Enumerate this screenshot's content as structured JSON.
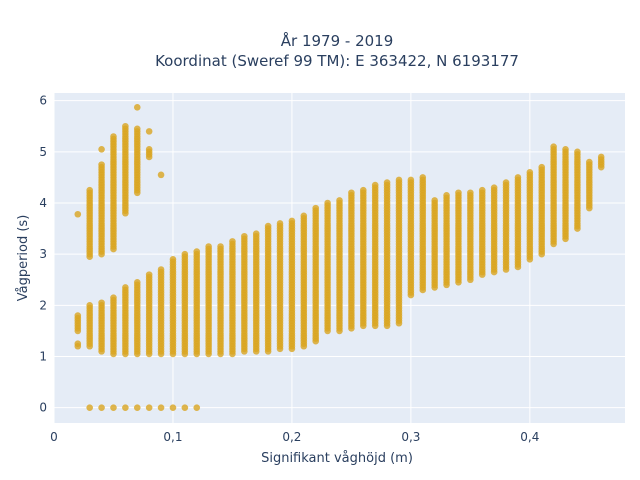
{
  "chart_data": {
    "type": "scatter",
    "title_line1": "År 1979 - 2019",
    "title_line2": "Koordinat (Sweref 99 TM): E 363422, N 6193177",
    "xlabel": "Signifikant våghöjd (m)",
    "ylabel": "Vågperiod (s)",
    "xlim": [
      0,
      0.48
    ],
    "ylim": [
      -0.3,
      6.15
    ],
    "x_ticks": [
      0,
      0.1,
      0.2,
      0.3,
      0.4
    ],
    "x_tick_labels": [
      "0",
      "0,1",
      "0,2",
      "0,3",
      "0,4"
    ],
    "y_ticks": [
      0,
      1,
      2,
      3,
      4,
      5,
      6
    ],
    "y_tick_labels": [
      "0",
      "1",
      "2",
      "3",
      "4",
      "5",
      "6"
    ],
    "grid": true,
    "legend": "none",
    "colors": {
      "marker": "#daa520",
      "plot_bg": "#e5ecf6",
      "grid": "#ffffff",
      "text": "#2a3f5f"
    },
    "marker_opacity": 0.8,
    "columns": [
      {
        "x": 0.02,
        "ranges": [
          [
            1.2,
            1.25
          ],
          [
            1.5,
            1.8
          ],
          [
            3.78,
            3.78
          ]
        ]
      },
      {
        "x": 0.03,
        "ranges": [
          [
            0,
            0
          ],
          [
            1.2,
            2.0
          ],
          [
            2.95,
            4.25
          ]
        ]
      },
      {
        "x": 0.04,
        "ranges": [
          [
            0,
            0
          ],
          [
            1.1,
            2.05
          ],
          [
            3.0,
            4.75
          ],
          [
            5.05,
            5.05
          ]
        ]
      },
      {
        "x": 0.05,
        "ranges": [
          [
            0,
            0
          ],
          [
            1.05,
            2.15
          ],
          [
            3.1,
            5.3
          ]
        ]
      },
      {
        "x": 0.06,
        "ranges": [
          [
            0,
            0
          ],
          [
            1.05,
            2.35
          ],
          [
            3.8,
            5.5
          ]
        ]
      },
      {
        "x": 0.07,
        "ranges": [
          [
            0,
            0
          ],
          [
            1.05,
            2.45
          ],
          [
            4.2,
            5.45
          ],
          [
            5.87,
            5.87
          ]
        ]
      },
      {
        "x": 0.08,
        "ranges": [
          [
            0,
            0
          ],
          [
            1.05,
            2.6
          ],
          [
            4.9,
            5.05
          ],
          [
            5.4,
            5.4
          ]
        ]
      },
      {
        "x": 0.09,
        "ranges": [
          [
            0,
            0
          ],
          [
            1.05,
            2.7
          ],
          [
            4.55,
            4.55
          ]
        ]
      },
      {
        "x": 0.1,
        "ranges": [
          [
            0,
            0
          ],
          [
            1.05,
            2.9
          ]
        ]
      },
      {
        "x": 0.11,
        "ranges": [
          [
            0,
            0
          ],
          [
            1.05,
            3.0
          ]
        ]
      },
      {
        "x": 0.12,
        "ranges": [
          [
            0,
            0
          ],
          [
            1.05,
            3.05
          ]
        ]
      },
      {
        "x": 0.13,
        "ranges": [
          [
            1.05,
            3.15
          ]
        ]
      },
      {
        "x": 0.14,
        "ranges": [
          [
            1.05,
            3.15
          ]
        ]
      },
      {
        "x": 0.15,
        "ranges": [
          [
            1.05,
            3.25
          ]
        ]
      },
      {
        "x": 0.16,
        "ranges": [
          [
            1.1,
            3.35
          ]
        ]
      },
      {
        "x": 0.17,
        "ranges": [
          [
            1.1,
            3.4
          ]
        ]
      },
      {
        "x": 0.18,
        "ranges": [
          [
            1.1,
            3.55
          ]
        ]
      },
      {
        "x": 0.19,
        "ranges": [
          [
            1.15,
            3.6
          ]
        ]
      },
      {
        "x": 0.2,
        "ranges": [
          [
            1.15,
            3.65
          ]
        ]
      },
      {
        "x": 0.21,
        "ranges": [
          [
            1.2,
            3.75
          ]
        ]
      },
      {
        "x": 0.22,
        "ranges": [
          [
            1.3,
            3.9
          ]
        ]
      },
      {
        "x": 0.23,
        "ranges": [
          [
            1.5,
            4.0
          ]
        ]
      },
      {
        "x": 0.24,
        "ranges": [
          [
            1.5,
            4.05
          ]
        ]
      },
      {
        "x": 0.25,
        "ranges": [
          [
            1.55,
            4.2
          ]
        ]
      },
      {
        "x": 0.26,
        "ranges": [
          [
            1.6,
            4.25
          ]
        ]
      },
      {
        "x": 0.27,
        "ranges": [
          [
            1.6,
            4.35
          ]
        ]
      },
      {
        "x": 0.28,
        "ranges": [
          [
            1.6,
            4.4
          ]
        ]
      },
      {
        "x": 0.29,
        "ranges": [
          [
            1.65,
            4.45
          ]
        ]
      },
      {
        "x": 0.3,
        "ranges": [
          [
            2.2,
            4.45
          ]
        ]
      },
      {
        "x": 0.31,
        "ranges": [
          [
            2.3,
            4.5
          ]
        ]
      },
      {
        "x": 0.32,
        "ranges": [
          [
            2.35,
            4.05
          ]
        ]
      },
      {
        "x": 0.33,
        "ranges": [
          [
            2.4,
            4.15
          ]
        ]
      },
      {
        "x": 0.34,
        "ranges": [
          [
            2.45,
            4.2
          ]
        ]
      },
      {
        "x": 0.35,
        "ranges": [
          [
            2.5,
            4.2
          ]
        ]
      },
      {
        "x": 0.36,
        "ranges": [
          [
            2.6,
            4.25
          ]
        ]
      },
      {
        "x": 0.37,
        "ranges": [
          [
            2.65,
            4.3
          ]
        ]
      },
      {
        "x": 0.38,
        "ranges": [
          [
            2.7,
            4.4
          ]
        ]
      },
      {
        "x": 0.39,
        "ranges": [
          [
            2.75,
            4.5
          ]
        ]
      },
      {
        "x": 0.4,
        "ranges": [
          [
            2.9,
            4.6
          ]
        ]
      },
      {
        "x": 0.41,
        "ranges": [
          [
            3.0,
            4.7
          ]
        ]
      },
      {
        "x": 0.42,
        "ranges": [
          [
            3.2,
            5.1
          ]
        ]
      },
      {
        "x": 0.43,
        "ranges": [
          [
            3.3,
            5.05
          ]
        ]
      },
      {
        "x": 0.44,
        "ranges": [
          [
            3.5,
            5.0
          ]
        ]
      },
      {
        "x": 0.45,
        "ranges": [
          [
            3.9,
            4.8
          ]
        ]
      },
      {
        "x": 0.46,
        "ranges": [
          [
            4.7,
            4.9
          ]
        ]
      }
    ]
  }
}
